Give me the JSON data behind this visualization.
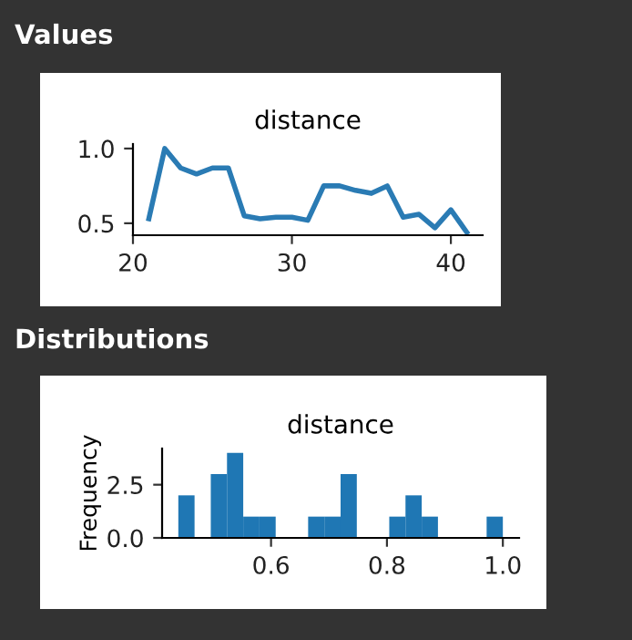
{
  "chart_data": [
    {
      "type": "line",
      "title": "distance",
      "annotations": [
        "Values"
      ],
      "x": [
        21,
        22,
        23,
        24,
        25,
        26,
        27,
        28,
        29,
        30,
        31,
        32,
        33,
        34,
        35,
        36,
        37,
        38,
        39,
        40,
        41
      ],
      "series": [
        {
          "color": "#2a7bb4",
          "values": [
            0.53,
            1.0,
            0.87,
            0.83,
            0.87,
            0.87,
            0.55,
            0.53,
            0.54,
            0.54,
            0.52,
            0.75,
            0.75,
            0.72,
            0.7,
            0.75,
            0.54,
            0.56,
            0.47,
            0.59,
            0.44
          ]
        }
      ],
      "xlim": [
        20,
        42
      ],
      "ylim": [
        0.42,
        1.03
      ],
      "xticks": [
        20,
        30,
        40
      ],
      "yticks": [
        0.5,
        {
          "value": 1,
          "label": "1.0"
        }
      ],
      "grid": false,
      "legend": false
    },
    {
      "type": "histogram",
      "title": "distance",
      "ylabel": "Frequency",
      "annotations": [
        "Distributions"
      ],
      "color": "#1f77b4",
      "bins": [
        0.44,
        0.468,
        0.496,
        0.524,
        0.552,
        0.58,
        0.608,
        0.636,
        0.664,
        0.692,
        0.72,
        0.748,
        0.776,
        0.804,
        0.832,
        0.86,
        0.888,
        0.916,
        0.944,
        0.972,
        1.0
      ],
      "values": [
        2,
        0,
        3,
        4,
        1,
        1,
        0,
        0,
        1,
        1,
        3,
        0,
        0,
        1,
        2,
        1,
        0,
        0,
        0,
        1
      ],
      "xlim": [
        0.412,
        1.028
      ],
      "ylim": [
        0,
        4.2
      ],
      "xticks": [
        0.6,
        0.8,
        {
          "value": 1,
          "label": "1.0"
        }
      ],
      "yticks": [
        {
          "value": 0,
          "label": "0.0"
        },
        2.5
      ],
      "grid": false,
      "legend": false
    }
  ]
}
